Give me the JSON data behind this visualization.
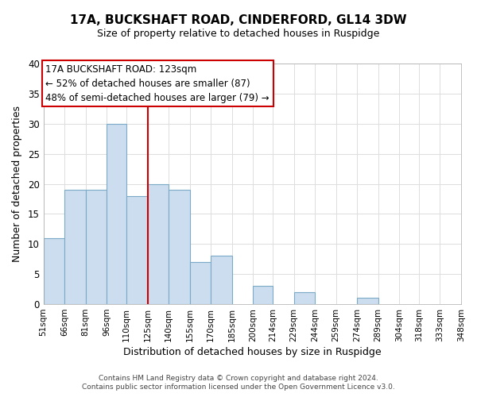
{
  "title": "17A, BUCKSHAFT ROAD, CINDERFORD, GL14 3DW",
  "subtitle": "Size of property relative to detached houses in Ruspidge",
  "xlabel": "Distribution of detached houses by size in Ruspidge",
  "ylabel": "Number of detached properties",
  "bar_left_edges": [
    51,
    66,
    81,
    96,
    110,
    125,
    140,
    155,
    170,
    185,
    200,
    214,
    229,
    244,
    259,
    274,
    289,
    304,
    318,
    333
  ],
  "bar_widths": [
    15,
    15,
    15,
    14,
    15,
    15,
    15,
    15,
    15,
    15,
    14,
    15,
    15,
    15,
    15,
    15,
    15,
    14,
    15,
    15
  ],
  "bar_heights": [
    11,
    19,
    19,
    30,
    18,
    20,
    19,
    7,
    8,
    0,
    3,
    0,
    2,
    0,
    0,
    1,
    0,
    0,
    0,
    0
  ],
  "bar_color": "#ccddef",
  "bar_edge_color": "#7aaac8",
  "tick_labels": [
    "51sqm",
    "66sqm",
    "81sqm",
    "96sqm",
    "110sqm",
    "125sqm",
    "140sqm",
    "155sqm",
    "170sqm",
    "185sqm",
    "200sqm",
    "214sqm",
    "229sqm",
    "244sqm",
    "259sqm",
    "274sqm",
    "289sqm",
    "304sqm",
    "318sqm",
    "333sqm",
    "348sqm"
  ],
  "tick_positions": [
    51,
    66,
    81,
    96,
    110,
    125,
    140,
    155,
    170,
    185,
    200,
    214,
    229,
    244,
    259,
    274,
    289,
    304,
    318,
    333,
    348
  ],
  "vline_x": 125,
  "vline_color": "#cc0000",
  "ylim": [
    0,
    40
  ],
  "yticks": [
    0,
    5,
    10,
    15,
    20,
    25,
    30,
    35,
    40
  ],
  "annotation_title": "17A BUCKSHAFT ROAD: 123sqm",
  "annotation_line1": "← 52% of detached houses are smaller (87)",
  "annotation_line2": "48% of semi-detached houses are larger (79) →",
  "footer1": "Contains HM Land Registry data © Crown copyright and database right 2024.",
  "footer2": "Contains public sector information licensed under the Open Government Licence v3.0.",
  "background_color": "#ffffff",
  "grid_color": "#dddddd"
}
